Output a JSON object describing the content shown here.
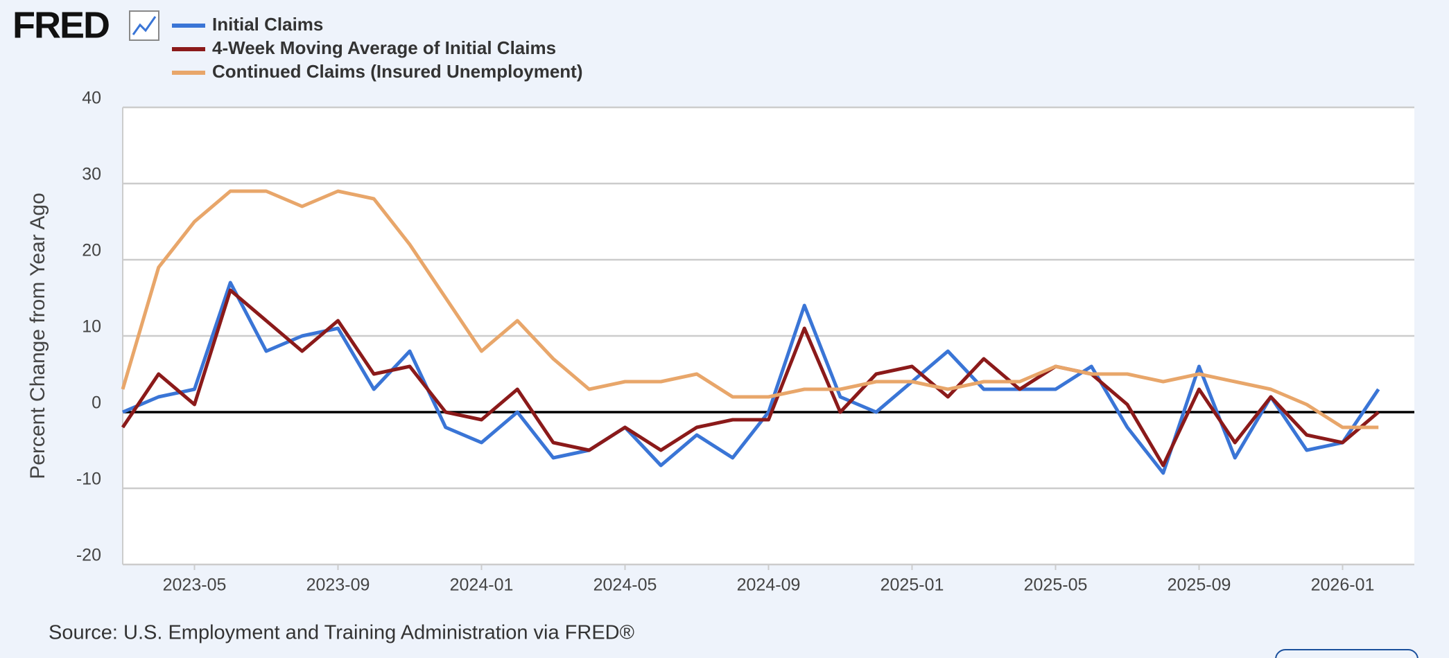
{
  "logo": "FRED",
  "chart_data": {
    "type": "line",
    "y_label": "Percent Change from Year Ago",
    "source": "Source: U.S. Employment and Training Administration via FRED®",
    "x": [
      "2023-03",
      "2023-04",
      "2023-05",
      "2023-06",
      "2023-07",
      "2023-08",
      "2023-09",
      "2023-10",
      "2023-11",
      "2023-12",
      "2024-01",
      "2024-02",
      "2024-03",
      "2024-04",
      "2024-05",
      "2024-06",
      "2024-07",
      "2024-08",
      "2024-09",
      "2024-10",
      "2024-11",
      "2024-12",
      "2025-01",
      "2025-02",
      "2025-03",
      "2025-04",
      "2025-05",
      "2025-06",
      "2025-07",
      "2025-08",
      "2025-09",
      "2025-10",
      "2025-11",
      "2025-12",
      "2026-01",
      "2026-02"
    ],
    "series": [
      {
        "name": "Initial Claims",
        "color": "#3a75d6",
        "values": [
          0,
          2,
          3,
          17,
          8,
          10,
          11,
          3,
          8,
          -2,
          -4,
          0,
          -6,
          -5,
          -2,
          -7,
          -3,
          -6,
          0,
          14,
          2,
          0,
          4,
          8,
          3,
          3,
          3,
          6,
          -2,
          -8,
          6,
          -6,
          2,
          -5,
          -4,
          3
        ]
      },
      {
        "name": "4-Week Moving Average of Initial Claims",
        "color": "#8b1a1a",
        "values": [
          -2,
          5,
          1,
          16,
          12,
          8,
          12,
          5,
          6,
          0,
          -1,
          3,
          -4,
          -5,
          -2,
          -5,
          -2,
          -1,
          -1,
          11,
          0,
          5,
          6,
          2,
          7,
          3,
          6,
          5,
          1,
          -7,
          3,
          -4,
          2,
          -3,
          -4,
          0
        ]
      },
      {
        "name": "Continued Claims (Insured Unemployment)",
        "color": "#e8a66a",
        "values": [
          3,
          19,
          25,
          29,
          29,
          27,
          29,
          28,
          22,
          15,
          8,
          12,
          7,
          3,
          4,
          4,
          5,
          2,
          2,
          3,
          3,
          4,
          4,
          3,
          4,
          4,
          6,
          5,
          5,
          4,
          5,
          4,
          3,
          1,
          -2,
          -2
        ]
      }
    ],
    "xlim": [
      "2023-03",
      "2026-03"
    ],
    "xticks": [
      "2023-05",
      "2023-09",
      "2024-01",
      "2024-05",
      "2024-09",
      "2025-01",
      "2025-05",
      "2025-09",
      "2026-01"
    ],
    "ylim": [
      -20,
      40
    ],
    "yticks": [
      -20,
      -10,
      0,
      10,
      20,
      30,
      40
    ],
    "grid": true
  }
}
